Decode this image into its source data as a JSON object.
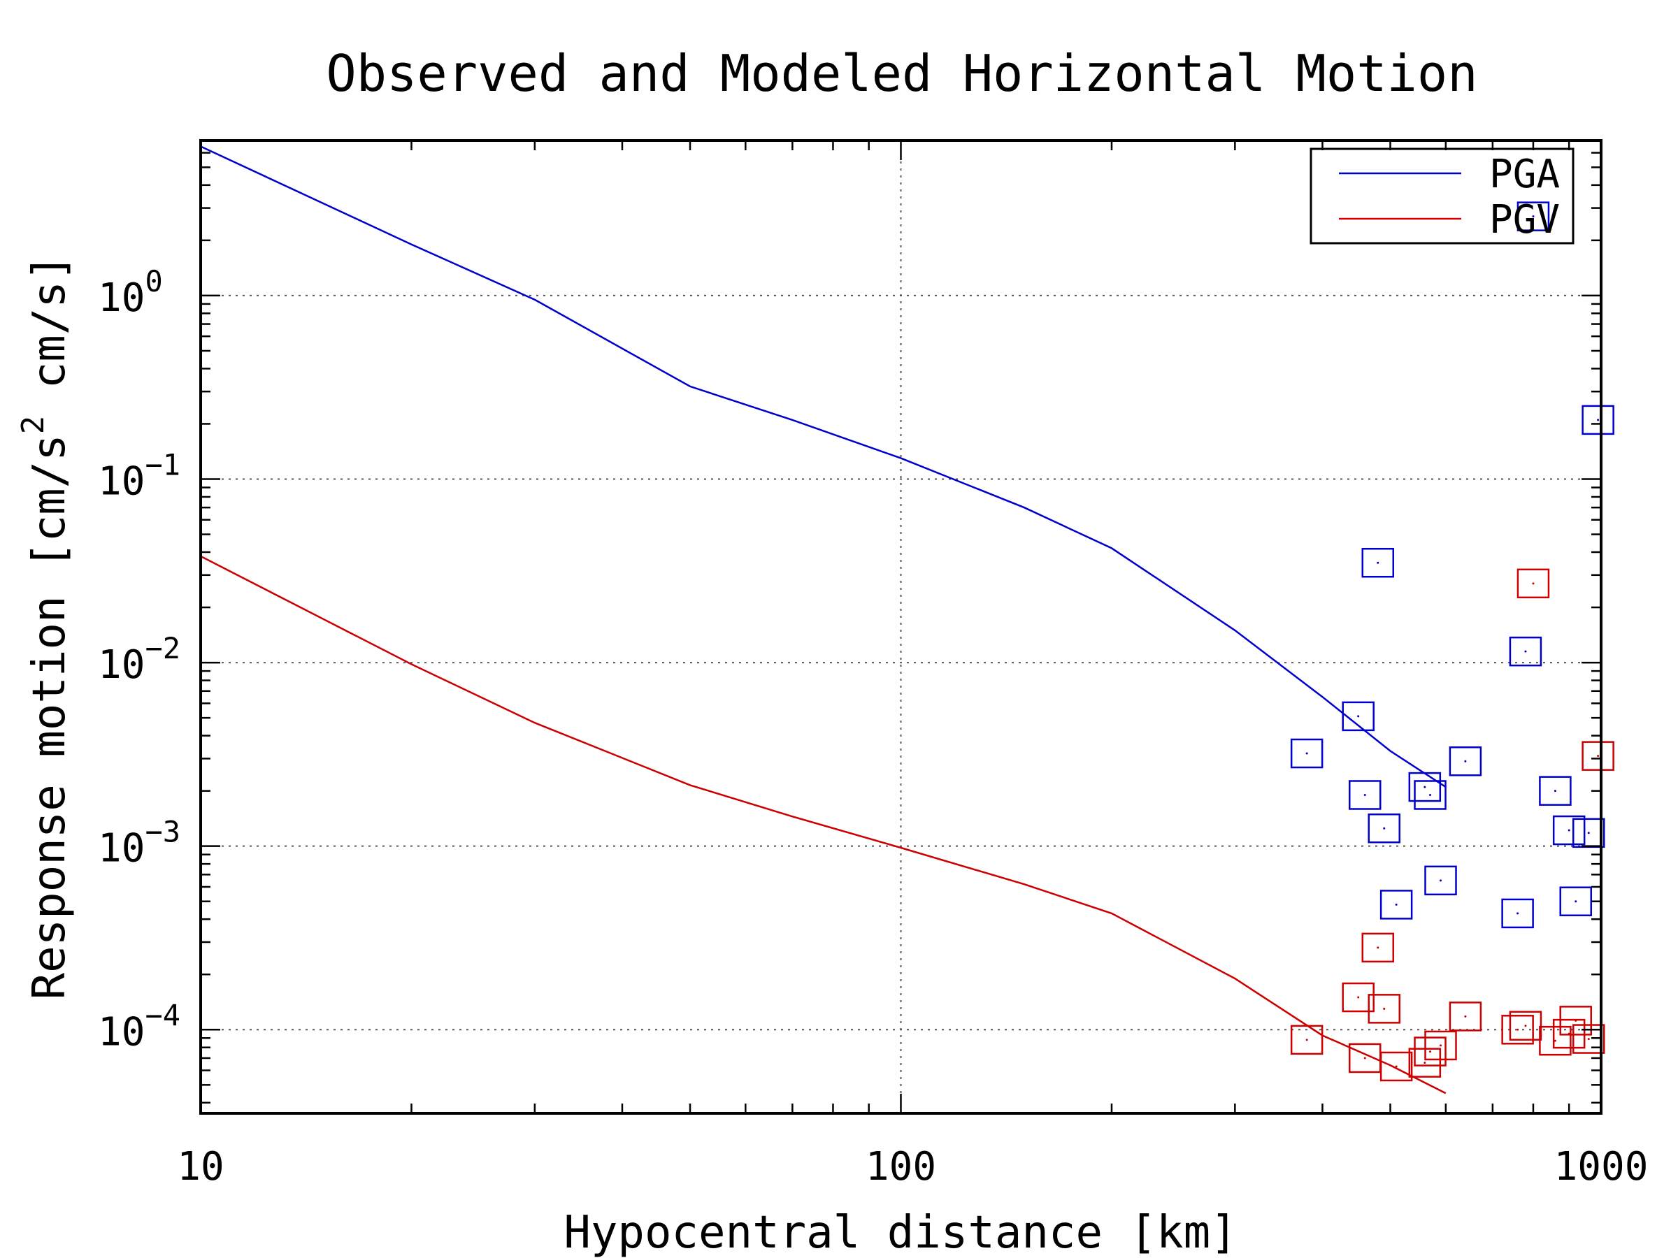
{
  "chart_data": {
    "type": "line",
    "title": "Observed and Modeled Horizontal Motion",
    "xlabel": "Hypocentral distance [km]",
    "ylabel": "Response motion [cm/s² cm/s]",
    "ylabel_parts": [
      "Response motion [cm/s",
      "2",
      " cm/s]"
    ],
    "x_scale": "log",
    "y_scale": "log",
    "xlim": [
      10,
      1000
    ],
    "ylim": [
      3.5e-05,
      7
    ],
    "grid": true,
    "legend_position": "top-right",
    "x_ticks": [
      {
        "value": 10,
        "label": "10"
      },
      {
        "value": 100,
        "label": "100"
      },
      {
        "value": 1000,
        "label": "1000"
      }
    ],
    "y_ticks": [
      {
        "value": 1,
        "base": "10",
        "exp": "0"
      },
      {
        "value": 0.1,
        "base": "10",
        "exp": "−1"
      },
      {
        "value": 0.01,
        "base": "10",
        "exp": "−2"
      },
      {
        "value": 0.001,
        "base": "10",
        "exp": "−3"
      },
      {
        "value": 0.0001,
        "base": "10",
        "exp": "−4"
      }
    ],
    "series": [
      {
        "name": "PGA",
        "color": "#0000cc",
        "line": {
          "x": [
            10,
            20,
            30,
            50,
            70,
            100,
            150,
            200,
            300,
            400,
            500,
            600
          ],
          "y": [
            6.5,
            1.9,
            0.95,
            0.32,
            0.21,
            0.13,
            0.07,
            0.042,
            0.015,
            0.0065,
            0.0033,
            0.0021
          ]
        },
        "observed": {
          "x": [
            380,
            450,
            460,
            480,
            490,
            510,
            560,
            570,
            590,
            640,
            760,
            780,
            800,
            860,
            900,
            920,
            960,
            990
          ],
          "y": [
            0.0032,
            0.0051,
            0.0019,
            0.035,
            0.00125,
            0.00048,
            0.0021,
            0.0019,
            0.00065,
            0.0029,
            0.00043,
            0.0115,
            2.7,
            0.002,
            0.00122,
            0.0005,
            0.00118,
            0.21
          ]
        }
      },
      {
        "name": "PGV",
        "color": "#cc0000",
        "line": {
          "x": [
            10,
            20,
            30,
            50,
            70,
            100,
            150,
            200,
            300,
            400,
            500,
            600
          ],
          "y": [
            0.038,
            0.0098,
            0.0047,
            0.00215,
            0.00145,
            0.00098,
            0.00062,
            0.00043,
            0.00019,
            9.3e-05,
            6.4e-05,
            4.5e-05
          ]
        },
        "observed": {
          "x": [
            380,
            450,
            460,
            480,
            490,
            510,
            560,
            570,
            590,
            640,
            760,
            780,
            800,
            860,
            900,
            920,
            960,
            990
          ],
          "y": [
            8.8e-05,
            0.00015,
            7e-05,
            0.00028,
            0.00013,
            6.3e-05,
            6.6e-05,
            7.6e-05,
            8.2e-05,
            0.000118,
            0.0001,
            0.000105,
            0.027,
            8.7e-05,
            9.5e-05,
            0.000112,
            8.9e-05,
            0.0031
          ]
        }
      }
    ]
  }
}
